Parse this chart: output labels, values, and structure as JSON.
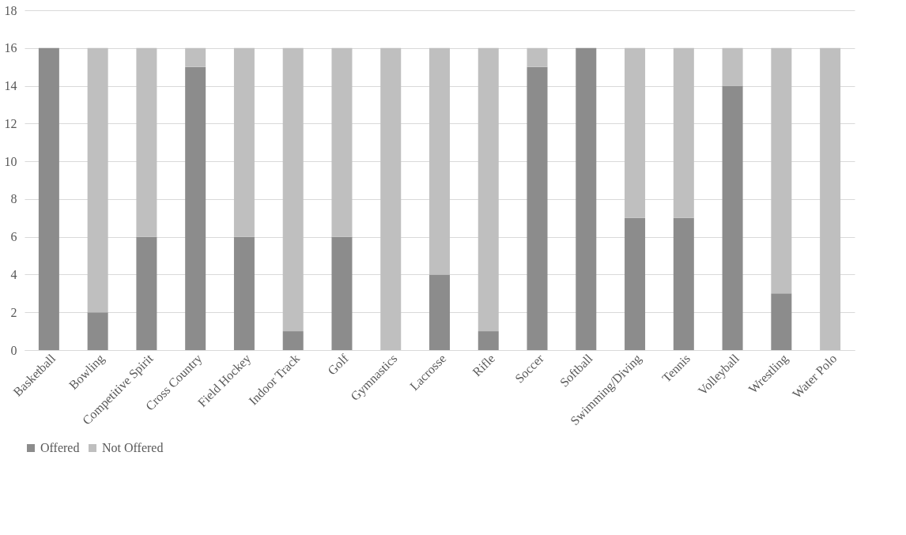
{
  "chart_data": {
    "type": "bar",
    "stacked": true,
    "categories": [
      "Basketball",
      "Bowling",
      "Competitive Spirit",
      "Cross Country",
      "Field Hockey",
      "Indoor Track",
      "Golf",
      "Gymnastics",
      "Lacrosse",
      "Rifle",
      "Soccer",
      "Softball",
      "Swimming/Diving",
      "Tennis",
      "Volleyball",
      "Wrestling",
      "Water Polo"
    ],
    "series": [
      {
        "name": "Offered",
        "color": "#8c8c8c",
        "values": [
          16,
          2,
          6,
          15,
          6,
          1,
          6,
          0,
          4,
          1,
          15,
          16,
          7,
          7,
          14,
          3,
          0
        ]
      },
      {
        "name": "Not Offered",
        "color": "#bfbfbf",
        "values": [
          0,
          14,
          10,
          1,
          10,
          15,
          10,
          16,
          12,
          15,
          1,
          0,
          9,
          9,
          2,
          13,
          16
        ]
      }
    ],
    "ylim": [
      0,
      18
    ],
    "yticks": [
      0,
      2,
      4,
      6,
      8,
      10,
      12,
      14,
      16,
      18
    ],
    "grid": "y",
    "legend": "bottom"
  }
}
